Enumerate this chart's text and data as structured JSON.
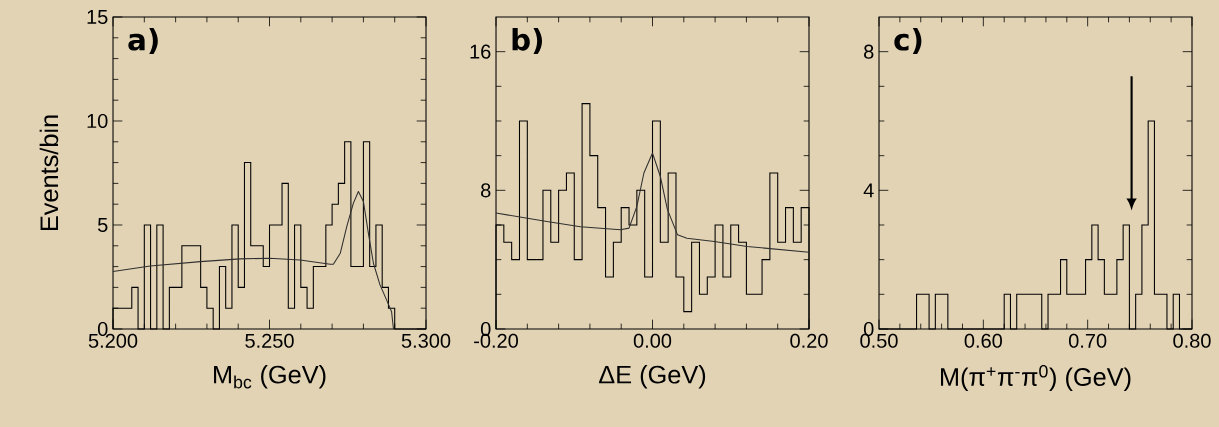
{
  "chart_data": [
    {
      "type": "histogram",
      "xlabel": "M$_{bc}$ (GeV)",
      "ylabel": "Events/bin",
      "annotations": [
        "a)"
      ],
      "bins": [
        5.2,
        5.202,
        5.204,
        5.206,
        5.208,
        5.21,
        5.212,
        5.214,
        5.216,
        5.218,
        5.22,
        5.222,
        5.224,
        5.226,
        5.228,
        5.23,
        5.232,
        5.234,
        5.236,
        5.238,
        5.24,
        5.242,
        5.244,
        5.246,
        5.248,
        5.25,
        5.252,
        5.254,
        5.256,
        5.258,
        5.26,
        5.262,
        5.264,
        5.266,
        5.268,
        5.27,
        5.272,
        5.274,
        5.276,
        5.278,
        5.28,
        5.282,
        5.284,
        5.286,
        5.288,
        5.29,
        5.292,
        5.294,
        5.296,
        5.298,
        5.3
      ],
      "values": [
        1,
        1,
        1,
        2,
        0,
        5,
        0,
        5,
        0,
        2,
        2,
        4,
        4,
        4,
        2,
        1,
        0,
        3,
        1,
        5,
        2,
        8,
        4,
        4,
        3,
        5,
        5,
        7,
        1,
        5,
        2,
        1,
        3,
        3,
        5,
        6,
        7,
        9,
        3,
        3,
        9,
        3,
        5,
        2,
        1,
        0,
        0,
        0,
        0,
        0
      ],
      "color": "#000000",
      "series": [
        {
          "type": "line",
          "color": "#303030",
          "x": [
            5.2,
            5.2119,
            5.2279,
            5.2406,
            5.25,
            5.2598,
            5.2694,
            5.2704,
            5.2726,
            5.2747,
            5.2768,
            5.2784,
            5.28,
            5.2816,
            5.2832,
            5.2853,
            5.2874,
            5.289,
            5.2896
          ],
          "values": [
            2.76,
            3.03,
            3.24,
            3.37,
            3.4,
            3.32,
            3.11,
            3.11,
            3.64,
            4.93,
            6.05,
            6.61,
            6.13,
            4.6,
            3.16,
            2.12,
            1.4,
            0.83,
            0
          ]
        }
      ],
      "xlim": [
        5.2,
        5.3
      ],
      "xticks": [
        {
          "value": 5.2,
          "label": "5.200"
        },
        {
          "value": 5.25,
          "label": "5.250"
        },
        {
          "value": 5.3,
          "label": "5.300"
        }
      ],
      "ylim": [
        0,
        15
      ],
      "yticks": [
        0,
        5,
        10,
        15
      ]
    },
    {
      "type": "histogram",
      "xlabel": "ΔE (GeV)",
      "annotations": [
        "b)"
      ],
      "bins": [
        -0.2,
        -0.19,
        -0.18,
        -0.17,
        -0.16,
        -0.15,
        -0.14,
        -0.13,
        -0.12,
        -0.11,
        -0.1,
        -0.09,
        -0.08,
        -0.07,
        -0.06,
        -0.05,
        -0.04,
        -0.03,
        -0.02,
        -0.01,
        0,
        0.01,
        0.02,
        0.03,
        0.04,
        0.05,
        0.06,
        0.07,
        0.08,
        0.09,
        0.1,
        0.11,
        0.12,
        0.13,
        0.14,
        0.15,
        0.16,
        0.17,
        0.18,
        0.19,
        0.2
      ],
      "values": [
        6,
        5,
        4,
        12,
        4,
        4,
        8,
        5,
        8,
        9,
        4,
        13,
        10,
        7,
        3,
        5,
        7,
        6,
        8,
        3,
        12,
        5,
        9,
        3,
        1,
        5,
        2,
        3,
        6,
        3,
        6,
        5,
        2,
        2,
        4,
        9,
        5,
        7,
        5,
        7
      ],
      "color": "#000000",
      "series": [
        {
          "type": "line",
          "color": "#303030",
          "x": [
            -0.2,
            -0.135,
            -0.092,
            -0.041,
            -0.03,
            -0.02,
            -0.011,
            0.0,
            0.01,
            0.019,
            0.032,
            0.044,
            0.079,
            0.121,
            0.2
          ],
          "values": [
            6.69,
            6.2,
            5.9,
            5.72,
            5.82,
            7.07,
            9.0,
            10.15,
            8.8,
            6.9,
            5.43,
            5.24,
            5.05,
            4.76,
            4.43
          ]
        }
      ],
      "xlim": [
        -0.2,
        0.2
      ],
      "xticks": [
        {
          "value": -0.2,
          "label": "-0.20"
        },
        {
          "value": 0,
          "label": "0.00"
        },
        {
          "value": 0.2,
          "label": "0.20"
        }
      ],
      "ylim": [
        0,
        18
      ],
      "yticks": [
        0,
        8,
        16
      ]
    },
    {
      "type": "histogram",
      "xlabel": "M(π$^{+}$π$^{-}$π$^{0}$) (GeV)",
      "annotations": [
        "c)"
      ],
      "bins": [
        0.5,
        0.506,
        0.512,
        0.518,
        0.524,
        0.53,
        0.536,
        0.542,
        0.548,
        0.554,
        0.56,
        0.566,
        0.572,
        0.578,
        0.584,
        0.59,
        0.596,
        0.602,
        0.608,
        0.614,
        0.62,
        0.626,
        0.632,
        0.638,
        0.644,
        0.65,
        0.656,
        0.662,
        0.668,
        0.674,
        0.68,
        0.686,
        0.692,
        0.698,
        0.704,
        0.71,
        0.716,
        0.722,
        0.728,
        0.734,
        0.74,
        0.746,
        0.752,
        0.758,
        0.764,
        0.77,
        0.776,
        0.782,
        0.788,
        0.794,
        0.8
      ],
      "values": [
        0,
        0,
        0,
        0,
        0,
        0,
        1,
        1,
        0,
        1,
        1,
        0,
        0,
        0,
        0,
        0,
        0,
        0,
        0,
        0,
        1,
        0,
        1,
        1,
        1,
        1,
        0,
        1,
        1,
        2,
        1,
        1,
        1,
        2,
        3,
        2,
        1,
        1,
        2,
        3,
        0,
        1,
        3,
        6,
        1,
        1,
        0,
        1,
        0,
        0
      ],
      "color": "#000000",
      "xlim": [
        0.5,
        0.8
      ],
      "xticks": [
        {
          "value": 0.5,
          "label": "0.50"
        },
        {
          "value": 0.6,
          "label": "0.60"
        },
        {
          "value": 0.7,
          "label": "0.70"
        },
        {
          "value": 0.8,
          "label": "0.80"
        }
      ],
      "ylim": [
        0,
        9
      ],
      "yticks": [
        0,
        4,
        8
      ]
    }
  ]
}
